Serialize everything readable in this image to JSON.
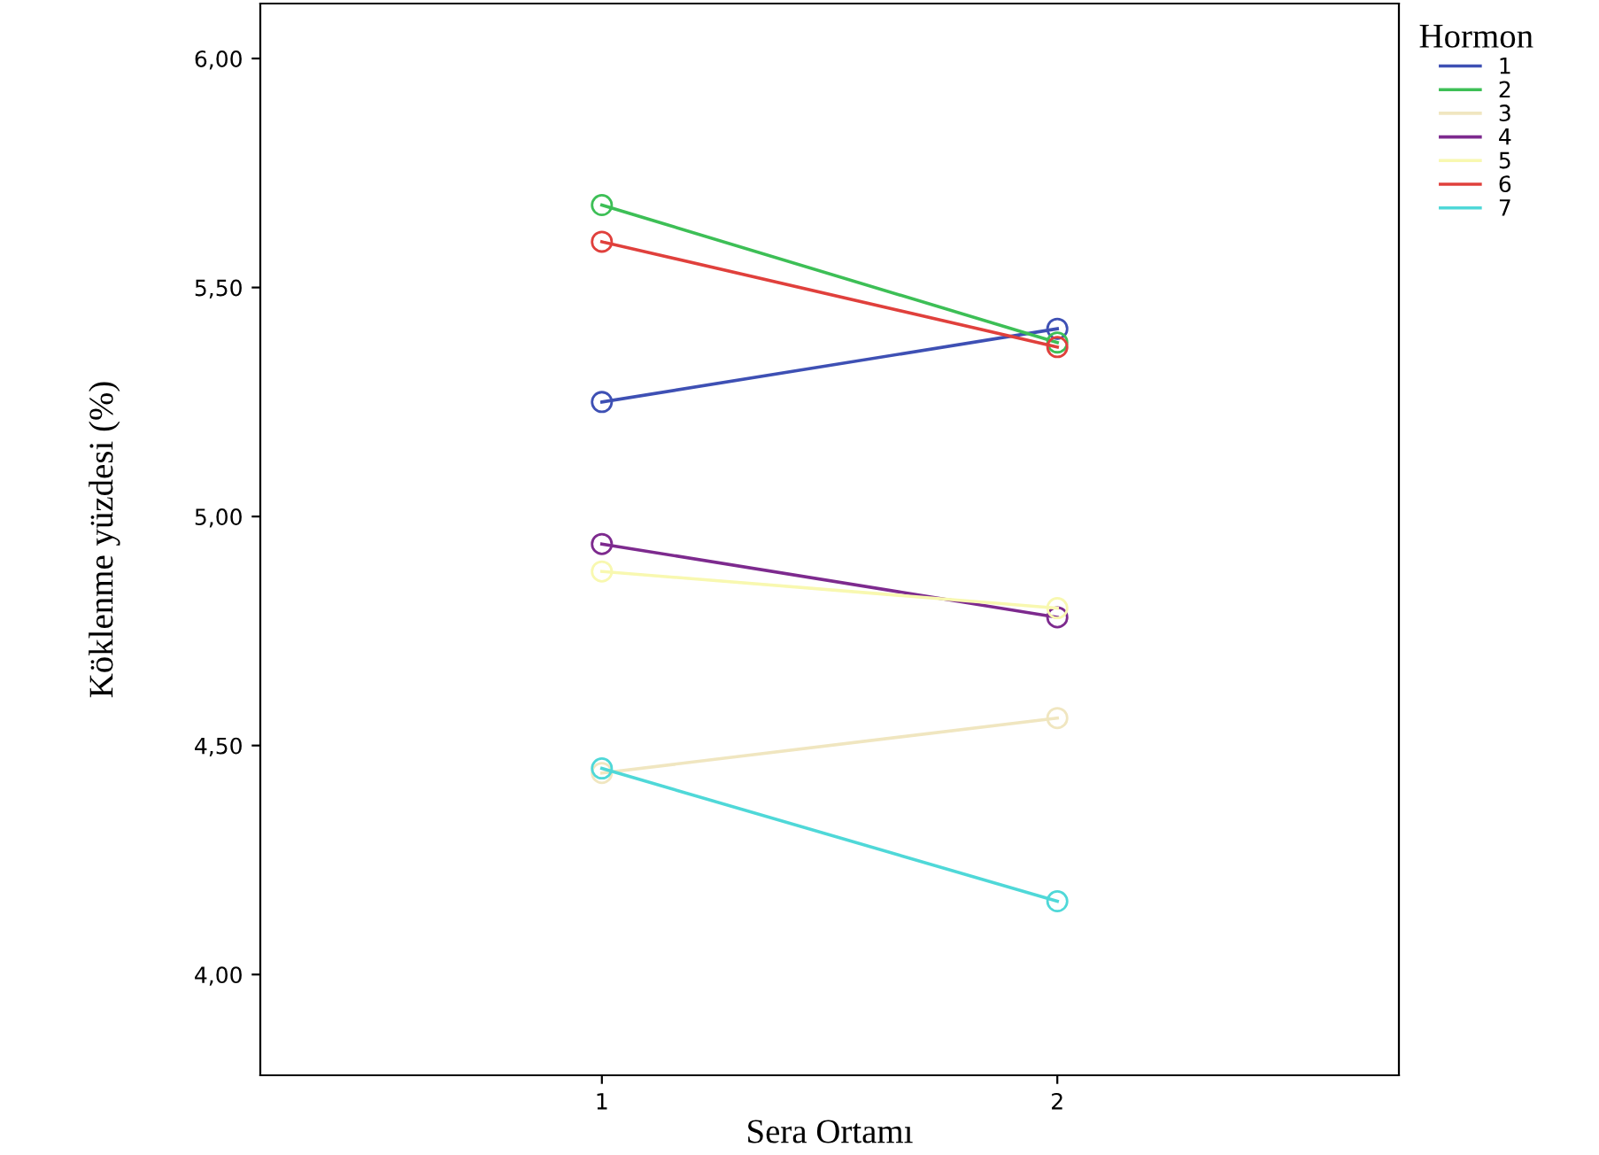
{
  "chart_data": {
    "type": "line",
    "xlabel": "Sera Ortamı",
    "ylabel": "Köklenme yüzdesi (%)",
    "legend_title": "Hormon",
    "categories": [
      "1",
      "2"
    ],
    "series": [
      {
        "name": "1",
        "color": "#3e50b4",
        "values": [
          5.25,
          5.41
        ]
      },
      {
        "name": "2",
        "color": "#3dbf56",
        "values": [
          5.68,
          5.38
        ]
      },
      {
        "name": "3",
        "color": "#f0e6c0",
        "values": [
          4.44,
          4.56
        ]
      },
      {
        "name": "4",
        "color": "#7d2a8e",
        "values": [
          4.94,
          4.78
        ]
      },
      {
        "name": "5",
        "color": "#f8f8b0",
        "values": [
          4.88,
          4.8
        ]
      },
      {
        "name": "6",
        "color": "#e0403c",
        "values": [
          5.6,
          5.37
        ]
      },
      {
        "name": "7",
        "color": "#4fd8d8",
        "values": [
          4.45,
          4.16
        ]
      }
    ],
    "ylim": [
      3.78,
      6.12
    ],
    "yticks": [
      {
        "value": 4,
        "label": "4,00"
      },
      {
        "value": 4.5,
        "label": "4,50"
      },
      {
        "value": 5,
        "label": "5,00"
      },
      {
        "value": 5.5,
        "label": "5,50"
      },
      {
        "value": 6,
        "label": "6,00"
      }
    ],
    "marker": "circle",
    "grid": false,
    "legend": "top right"
  }
}
